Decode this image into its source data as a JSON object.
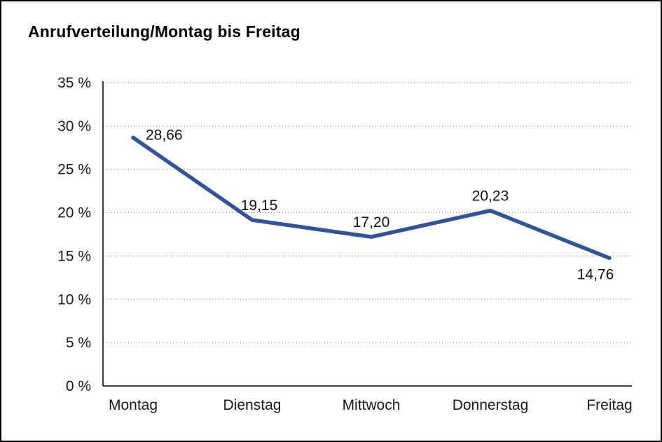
{
  "title": "Anrufverteilung/Montag bis Freitag",
  "chart_data": {
    "type": "line",
    "title": "Anrufverteilung/Montag bis Freitag",
    "categories": [
      "Montag",
      "Dienstag",
      "Mittwoch",
      "Donnerstag",
      "Freitag"
    ],
    "values": [
      28.66,
      19.15,
      17.2,
      20.23,
      14.76
    ],
    "value_labels": [
      "28,66",
      "19,15",
      "17,20",
      "20,23",
      "14,76"
    ],
    "ylim": [
      0,
      35
    ],
    "ytick_step": 5,
    "ytick_labels": [
      "0 %",
      "5 %",
      "10 %",
      "15 %",
      "20 %",
      "25 %",
      "30 %",
      "35 %"
    ],
    "xlabel": "",
    "ylabel": "",
    "grid": "dotted-horizontal",
    "legend": "none",
    "line_color": "#31539B",
    "text_color": "#1a1a1a",
    "grid_color": "#7a7a7a",
    "axis_color": "#000000"
  }
}
